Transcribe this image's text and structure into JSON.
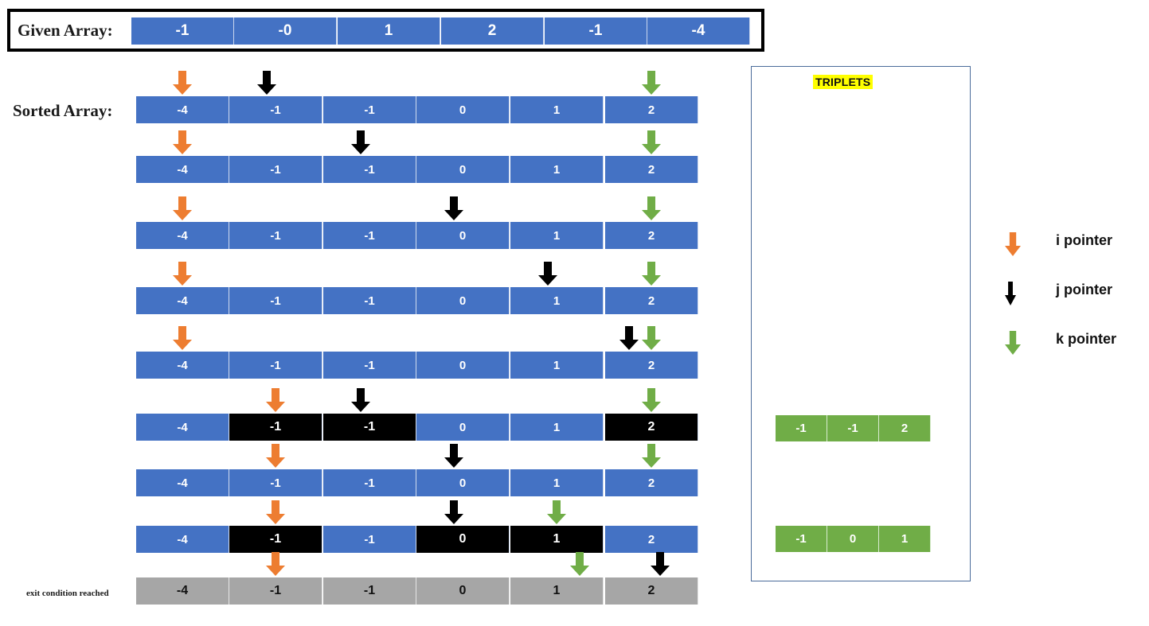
{
  "given": {
    "label": "Given Array:",
    "values": [
      "-1",
      "-0",
      "1",
      "2",
      "-1",
      "-4"
    ]
  },
  "sorted_label": "Sorted Array:",
  "exit_label": "exit condition reached",
  "rows": [
    {
      "values": [
        "-4",
        "-1",
        "-1",
        "0",
        "1",
        "2"
      ],
      "style": [
        "b",
        "b",
        "b",
        "b",
        "b",
        "b"
      ],
      "i": 0,
      "j": 1,
      "k": 5
    },
    {
      "values": [
        "-4",
        "-1",
        "-1",
        "0",
        "1",
        "2"
      ],
      "style": [
        "b",
        "b",
        "b",
        "b",
        "b",
        "b"
      ],
      "i": 0,
      "j": 2,
      "k": 5
    },
    {
      "values": [
        "-4",
        "-1",
        "-1",
        "0",
        "1",
        "2"
      ],
      "style": [
        "b",
        "b",
        "b",
        "b",
        "b",
        "b"
      ],
      "i": 0,
      "j": 3,
      "k": 5
    },
    {
      "values": [
        "-4",
        "-1",
        "-1",
        "0",
        "1",
        "2"
      ],
      "style": [
        "b",
        "b",
        "b",
        "b",
        "b",
        "b"
      ],
      "i": 0,
      "j": 4,
      "k": 5
    },
    {
      "values": [
        "-4",
        "-1",
        "-1",
        "0",
        "1",
        "2"
      ],
      "style": [
        "b",
        "b",
        "b",
        "b",
        "b",
        "b"
      ],
      "i": 0,
      "j": 5,
      "k": 5
    },
    {
      "values": [
        "-4",
        "-1",
        "-1",
        "0",
        "1",
        "2"
      ],
      "style": [
        "b",
        "d",
        "d",
        "b",
        "b",
        "d"
      ],
      "i": 1,
      "j": 2,
      "k": 5
    },
    {
      "values": [
        "-4",
        "-1",
        "-1",
        "0",
        "1",
        "2"
      ],
      "style": [
        "b",
        "b",
        "b",
        "b",
        "b",
        "b"
      ],
      "i": 1,
      "j": 3,
      "k": 5
    },
    {
      "values": [
        "-4",
        "-1",
        "-1",
        "0",
        "1",
        "2"
      ],
      "style": [
        "b",
        "d",
        "b",
        "d",
        "d",
        "b"
      ],
      "i": 1,
      "j": 3,
      "k": 4
    },
    {
      "values": [
        "-4",
        "-1",
        "-1",
        "0",
        "1",
        "2"
      ],
      "style": [
        "g",
        "g",
        "g",
        "g",
        "g",
        "g"
      ],
      "i": 1,
      "j": 5,
      "k": 4
    }
  ],
  "triplets": {
    "title": "TRIPLETS",
    "items": [
      [
        "-1",
        "-1",
        "2"
      ],
      [
        "-1",
        "0",
        "1"
      ]
    ]
  },
  "legend": [
    {
      "label": "i pointer",
      "icon": "orange-down-arrow-icon",
      "color": "#ed7d31"
    },
    {
      "label": "j pointer",
      "icon": "black-down-arrow-icon",
      "color": "#000000"
    },
    {
      "label": "k pointer",
      "icon": "green-down-arrow-icon",
      "color": "#70ad47"
    }
  ],
  "colors": {
    "cell": "#4472c4",
    "highlight": "#000000",
    "exit": "#a6a6a6",
    "triplet": "#70ad47",
    "i_arrow": "#ed7d31",
    "j_arrow": "#000000",
    "k_arrow": "#70ad47",
    "title_bg": "#ffff00"
  }
}
